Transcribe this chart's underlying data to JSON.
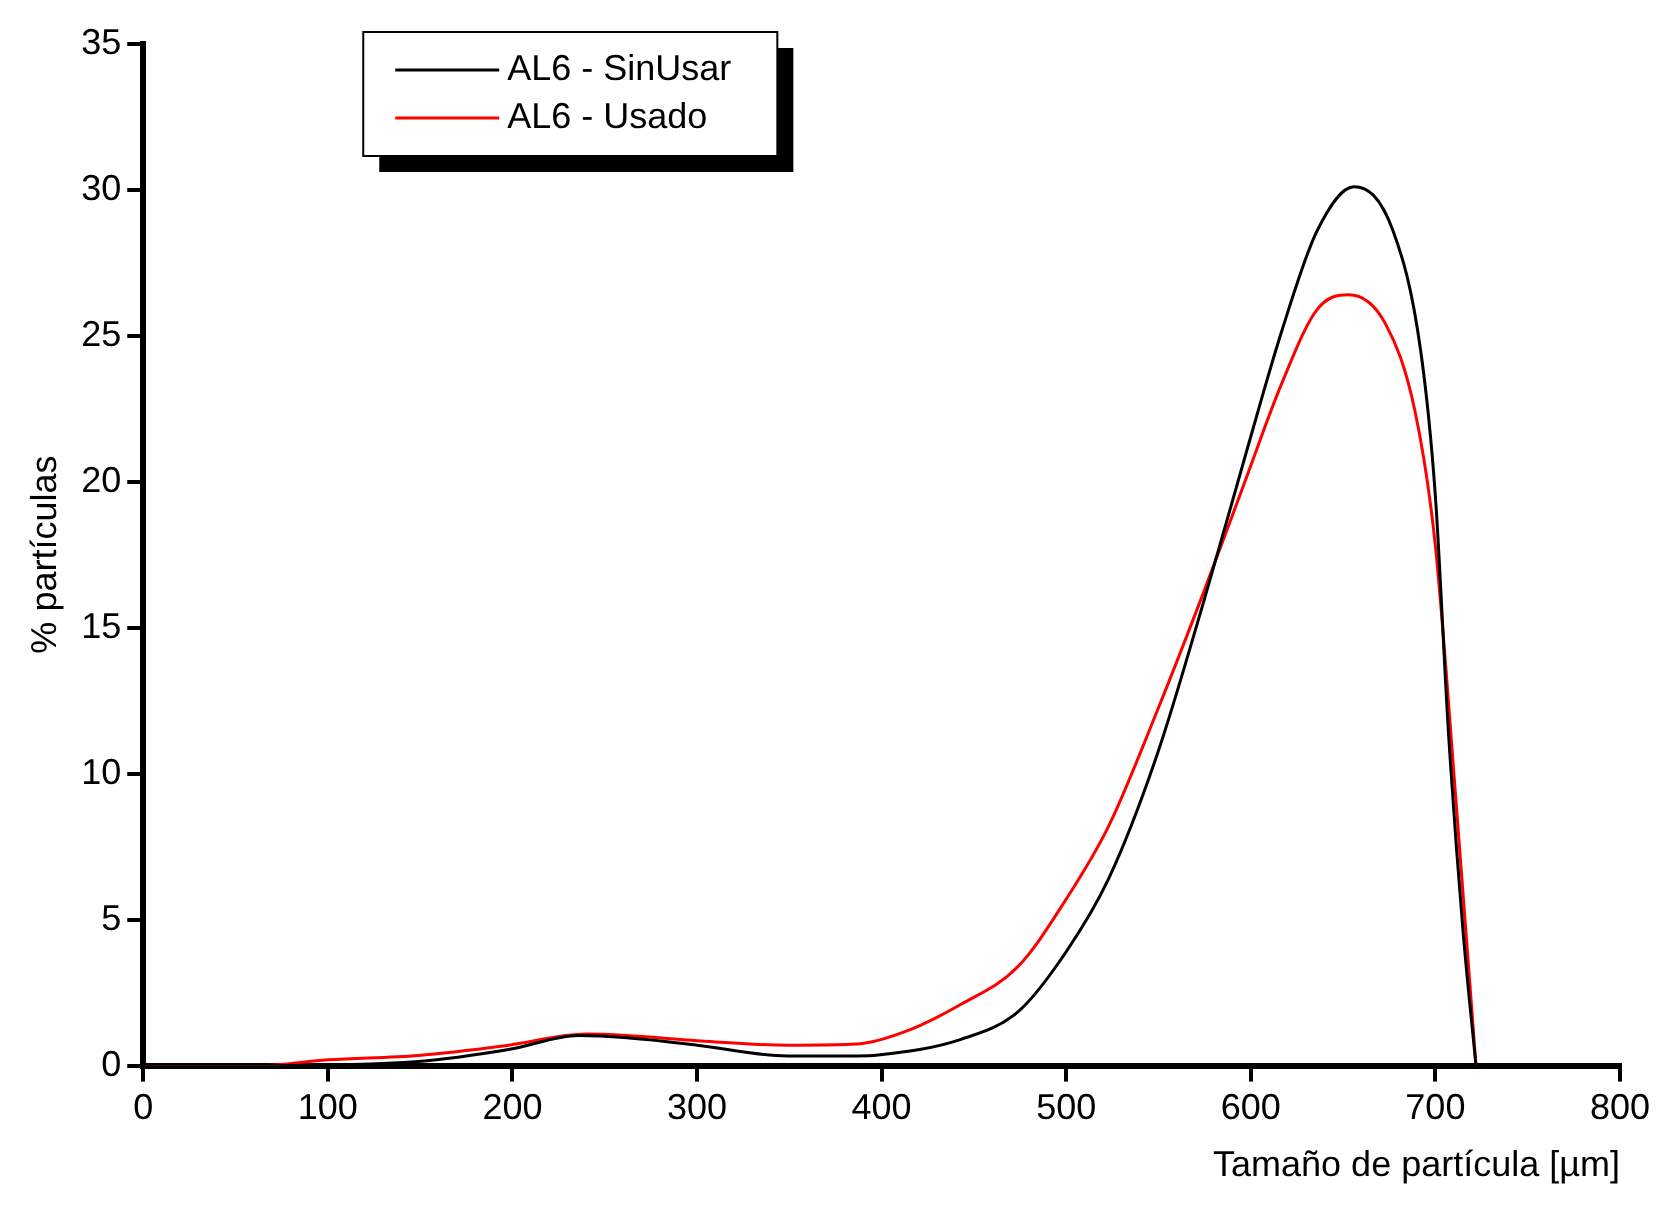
{
  "chart_data": {
    "type": "line",
    "xlabel": "Tamaño de partícula [µm]",
    "ylabel": "% partículas",
    "xlim": [
      0,
      800
    ],
    "ylim": [
      0,
      35
    ],
    "xticks": [
      0,
      100,
      200,
      300,
      400,
      500,
      600,
      700,
      800
    ],
    "yticks": [
      0,
      5,
      10,
      15,
      20,
      25,
      30,
      35
    ],
    "grid": false,
    "legend": "top left",
    "marker": "none",
    "line_style": "solid",
    "series": [
      {
        "name": "AL6 - SinUsar",
        "color": "#000000",
        "x": [
          0,
          62,
          149,
          198,
          236,
          262,
          300,
          349,
          387,
          398,
          443,
          474,
          500,
          523,
          549,
          575,
          598,
          617,
          636,
          656,
          677,
          692,
          700,
          707,
          715,
          722
        ],
        "values": [
          0,
          0,
          0.14,
          0.55,
          1.03,
          0.95,
          0.7,
          0.33,
          0.33,
          0.36,
          0.9,
          1.85,
          3.9,
          6.4,
          10.6,
          16.0,
          21.1,
          25.2,
          28.6,
          30.1,
          28.6,
          24.5,
          19.5,
          11.5,
          4.6,
          0
        ]
      },
      {
        "name": "AL6 - Usado",
        "color": "#ff0000",
        "x": [
          0,
          62,
          100,
          149,
          198,
          240,
          262,
          300,
          349,
          387,
          413,
          443,
          474,
          500,
          523,
          549,
          575,
          598,
          617,
          636,
          653,
          673,
          689,
          700,
          711,
          722
        ],
        "values": [
          0,
          0,
          0.2,
          0.35,
          0.7,
          1.08,
          1.03,
          0.85,
          0.7,
          0.74,
          1.17,
          2.1,
          3.4,
          5.7,
          8.2,
          12.1,
          16.3,
          20.2,
          23.4,
          25.9,
          26.4,
          25.4,
          22.4,
          17.8,
          9.2,
          0
        ]
      }
    ]
  }
}
